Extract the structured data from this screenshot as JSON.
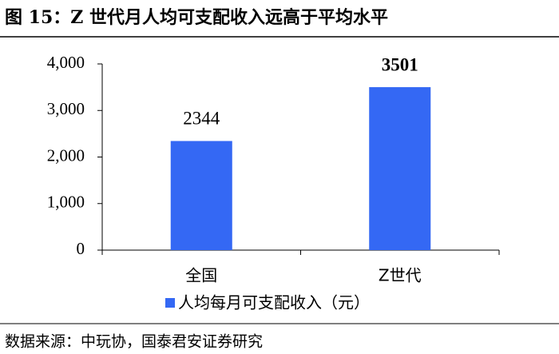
{
  "chart_data": {
    "type": "bar",
    "title": "图 15：Z 世代月人均可支配收入远高于平均水平",
    "categories": [
      "全国",
      "Z世代"
    ],
    "series": [
      {
        "name": "人均每月可支配收入（元）",
        "color": "#3468f4",
        "values": [
          2344,
          3501
        ]
      }
    ],
    "ylim": [
      0,
      4000
    ],
    "yticks": [
      0,
      {
        "value": 1000,
        "label": "1,000"
      },
      {
        "value": 2000,
        "label": "2,000"
      },
      {
        "value": 3000,
        "label": "3,000"
      },
      {
        "value": 4000,
        "label": "4,000"
      }
    ],
    "source": "数据来源：中玩协，国泰君安证券研究"
  }
}
